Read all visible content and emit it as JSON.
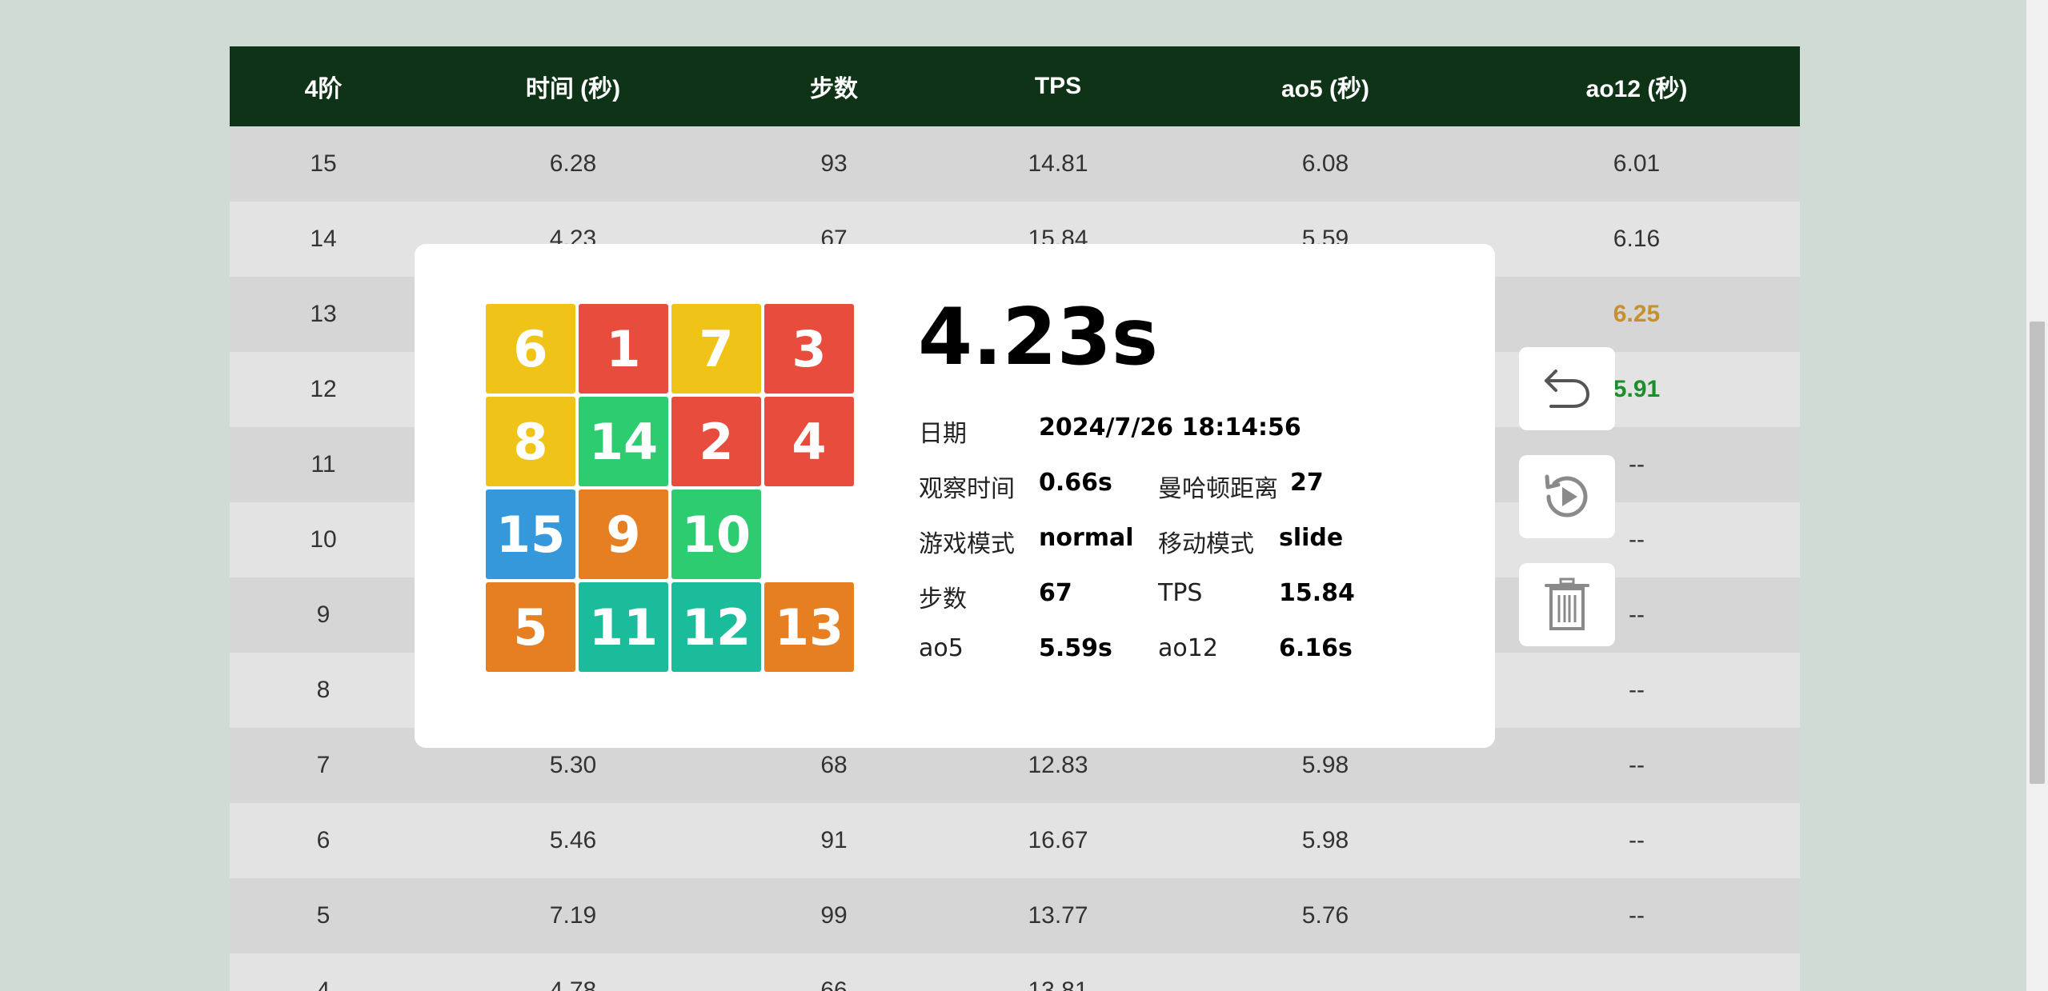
{
  "table": {
    "headers": [
      "4阶",
      "时间 (秒)",
      "步数",
      "TPS",
      "ao5 (秒)",
      "ao12 (秒)"
    ],
    "rows": [
      [
        "15",
        "6.28",
        "93",
        "14.81",
        "6.08",
        "6.01"
      ],
      [
        "14",
        "4.23",
        "67",
        "15.84",
        "5.59",
        "6.16"
      ],
      [
        "13",
        "",
        "",
        "",
        "",
        "6.25"
      ],
      [
        "12",
        "",
        "",
        "",
        "",
        "5.91"
      ],
      [
        "11",
        "",
        "",
        "",
        "",
        "--"
      ],
      [
        "10",
        "",
        "",
        "",
        "",
        "--"
      ],
      [
        "9",
        "",
        "",
        "",
        "",
        "--"
      ],
      [
        "8",
        "",
        "",
        "",
        "",
        "--"
      ],
      [
        "7",
        "5.30",
        "68",
        "12.83",
        "5.98",
        "--"
      ],
      [
        "6",
        "5.46",
        "91",
        "16.67",
        "5.98",
        "--"
      ],
      [
        "5",
        "7.19",
        "99",
        "13.77",
        "5.76",
        "--"
      ],
      [
        "4",
        "4.78",
        "66",
        "13.81",
        "",
        ""
      ]
    ],
    "highlight": {
      "orange": "#c8902c",
      "green": "#1a8f2a"
    }
  },
  "detail": {
    "time": "4.23s",
    "board": [
      {
        "n": "6",
        "color": "yellow"
      },
      {
        "n": "1",
        "color": "red"
      },
      {
        "n": "7",
        "color": "yellow"
      },
      {
        "n": "3",
        "color": "red"
      },
      {
        "n": "8",
        "color": "yellow"
      },
      {
        "n": "14",
        "color": "green"
      },
      {
        "n": "2",
        "color": "red"
      },
      {
        "n": "4",
        "color": "red"
      },
      {
        "n": "15",
        "color": "blue"
      },
      {
        "n": "9",
        "color": "orange"
      },
      {
        "n": "10",
        "color": "green"
      },
      {
        "n": "",
        "color": "empty"
      },
      {
        "n": "5",
        "color": "orange"
      },
      {
        "n": "11",
        "color": "teal"
      },
      {
        "n": "12",
        "color": "teal"
      },
      {
        "n": "13",
        "color": "orange"
      }
    ],
    "date_label": "日期",
    "date_value": "2024/7/26 18:14:56",
    "observe_label": "观察时间",
    "observe_value": "0.66s",
    "manhattan_label": "曼哈顿距离",
    "manhattan_value": "27",
    "game_mode_label": "游戏模式",
    "game_mode_value": "normal",
    "move_mode_label": "移动模式",
    "move_mode_value": "slide",
    "steps_label": "步数",
    "steps_value": "67",
    "tps_label": "TPS",
    "tps_value": "15.84",
    "ao5_label": "ao5",
    "ao5_value": "5.59s",
    "ao12_label": "ao12",
    "ao12_value": "6.16s"
  },
  "actions": [
    {
      "icon": "undo-icon"
    },
    {
      "icon": "replay-icon"
    },
    {
      "icon": "trash-icon"
    }
  ],
  "colors": {
    "header_bg": "#0f3316",
    "page_bg": "#d0dbd6"
  }
}
